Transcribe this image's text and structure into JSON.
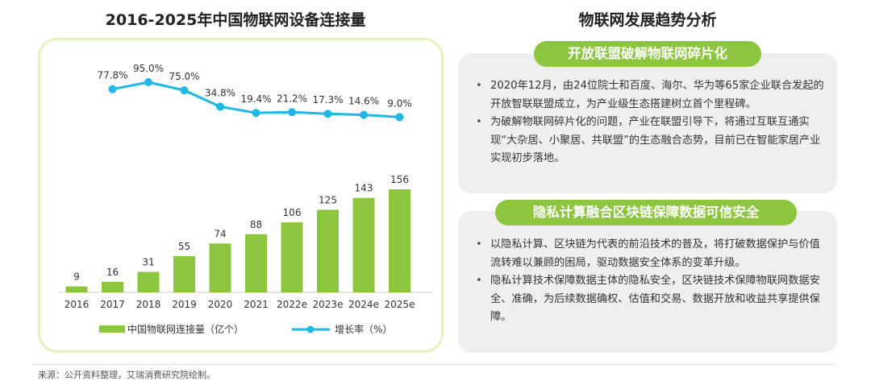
{
  "left_title": "2016-2025年中国物联网设备连接量",
  "right_title": "物联网发展趋势分析",
  "chart_data": {
    "type": "bar",
    "categories": [
      "2016",
      "2017",
      "2018",
      "2019",
      "2020",
      "2021",
      "2022e",
      "2023e",
      "2024e",
      "2025e"
    ],
    "series": [
      {
        "name": "中国物联网连接量（亿个）",
        "type": "bar",
        "values": [
          9,
          16,
          31,
          55,
          74,
          88,
          106,
          125,
          143,
          156
        ],
        "labels": [
          "9",
          "16",
          "31",
          "55",
          "74",
          "88",
          "106",
          "125",
          "143",
          "156"
        ]
      },
      {
        "name": "增长率（%）",
        "type": "line",
        "values": [
          77.8,
          95.0,
          75.0,
          34.8,
          19.4,
          21.2,
          17.3,
          14.6,
          9.0
        ],
        "x": [
          "2017",
          "2018",
          "2019",
          "2020",
          "2021",
          "2022e",
          "2023e",
          "2024e",
          "2025e"
        ],
        "labels": [
          "77.8%",
          "95.0%",
          "75.0%",
          "34.8%",
          "19.4%",
          "21.2%",
          "17.3%",
          "14.6%",
          "9.0%"
        ]
      }
    ],
    "title": "2016-2025年中国物联网设备连接量",
    "bar_color": "#8CC63F",
    "line_color": "#1FB8E6",
    "legend": "bottom"
  },
  "section1": {
    "title": "开放联盟破解物联网碎片化",
    "bullets": [
      "2020年12月，由24位院士和百度、海尔、华为等65家企业联合发起的开放智联联盟成立，为产业级生态搭建树立首个里程碑。",
      "为破解物联网碎片化的问题，产业在联盟引导下，将通过互联互通实现“大杂居、小聚居、共联盟”的生态融合态势，目前已在智能家居产业实现初步落地。"
    ]
  },
  "section2": {
    "title": "隐私计算融合区块链保障数据可信安全",
    "bullets": [
      "以隐私计算、区块链为代表的前沿技术的普及，将打破数据保护与价值流转难以兼顾的困局，驱动数据安全体系的变革升级。",
      "隐私计算技术保障数据主体的隐私安全，区块链技术保障物联网数据安全、准确，为后续数据确权、估值和交易、数据开放和收益共享提供保障。"
    ]
  },
  "source": "来源：公开资料整理，艾瑞消费研究院绘制。",
  "colors": {
    "accent": "#8CC63F",
    "panel": "#EFEFEF",
    "line": "#1FB8E6"
  }
}
